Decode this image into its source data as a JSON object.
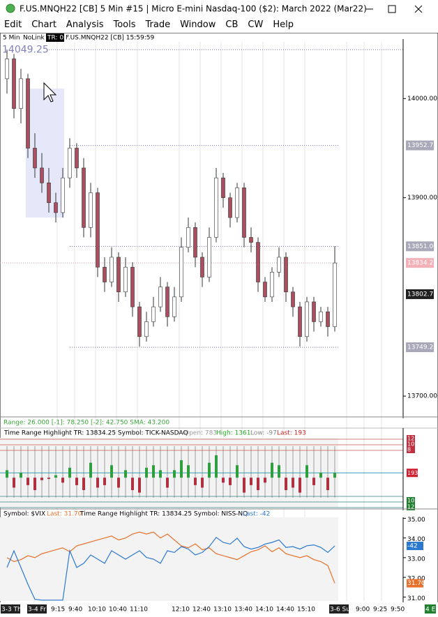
{
  "window": {
    "title": "F.US.MNQH22 [CB]  5 Min   #15 | Micro E-mini Nasdaq-100 ($2): March 2022 (Mar22)",
    "menus": [
      "Edit",
      "Chart",
      "Analysis",
      "Tools",
      "Trade",
      "Window",
      "CB",
      "CW",
      "Help"
    ]
  },
  "toolbar": {
    "interval": "5 Min",
    "link": "NoLink",
    "tr": "TR: 0s",
    "symbol_time": "F.US.MNQH22 [CB] 15:59:59"
  },
  "x_axis": {
    "labels": [
      "3-3 Th",
      "3-4 Fr",
      "9:15",
      "9:40",
      "10:10",
      "10:40",
      "11:10",
      "12:10",
      "12:40",
      "13:10",
      "13:40",
      "14:10",
      "14:40",
      "15:10",
      "3-6 Su",
      "9:00",
      "9:25",
      "9:50",
      "4 E"
    ]
  },
  "chart_data": [
    {
      "type": "candlestick",
      "high_label": "14049.25",
      "ylim": [
        13679,
        14060
      ],
      "yticks": [
        {
          "value": 14000,
          "label": "14000.00"
        },
        {
          "value": 13900,
          "label": "13900.00"
        },
        {
          "value": 13700,
          "label": "13700.00"
        }
      ],
      "levels": [
        14049.25,
        13952.75,
        13851.0,
        13834.25,
        13749.25
      ],
      "markers": [
        {
          "value": 13952.75,
          "label": "13952.75",
          "color": "#a8a8b8"
        },
        {
          "value": 13851.0,
          "label": "13851.00",
          "color": "#a8a8b8"
        },
        {
          "value": 13834.25,
          "label": "13834.25",
          "color": "#f2b0b8"
        },
        {
          "value": 13802.75,
          "label": "13802.75",
          "color": "#202020"
        },
        {
          "value": 13749.25,
          "label": "13749.25",
          "color": "#a8a8b8"
        }
      ],
      "up_color": "#ffffff",
      "down_color": "#a85060",
      "candles": [
        [
          14020,
          14049.25,
          14005,
          14040
        ],
        [
          14040,
          14045,
          13980,
          13990
        ],
        [
          13990,
          14030,
          13975,
          14020
        ],
        [
          14020,
          14025,
          13940,
          13950
        ],
        [
          13950,
          13965,
          13920,
          13930
        ],
        [
          13930,
          13945,
          13905,
          13915
        ],
        [
          13915,
          13930,
          13885,
          13895
        ],
        [
          13895,
          13905,
          13875,
          13885
        ],
        [
          13885,
          13930,
          13880,
          13920
        ],
        [
          13920,
          13960,
          13910,
          13950
        ],
        [
          13950,
          13955,
          13920,
          13930
        ],
        [
          13930,
          13940,
          13860,
          13870
        ],
        [
          13870,
          13915,
          13860,
          13905
        ],
        [
          13905,
          13910,
          13820,
          13830
        ],
        [
          13830,
          13840,
          13805,
          13815
        ],
        [
          13815,
          13850,
          13810,
          13840
        ],
        [
          13840,
          13845,
          13795,
          13805
        ],
        [
          13805,
          13840,
          13800,
          13830
        ],
        [
          13830,
          13835,
          13780,
          13790
        ],
        [
          13790,
          13795,
          13750,
          13760
        ],
        [
          13760,
          13785,
          13755,
          13775
        ],
        [
          13775,
          13800,
          13770,
          13790
        ],
        [
          13790,
          13820,
          13785,
          13810
        ],
        [
          13810,
          13815,
          13770,
          13780
        ],
        [
          13780,
          13810,
          13775,
          13800
        ],
        [
          13800,
          13860,
          13795,
          13850
        ],
        [
          13850,
          13880,
          13845,
          13870
        ],
        [
          13870,
          13875,
          13830,
          13840
        ],
        [
          13840,
          13845,
          13810,
          13820
        ],
        [
          13820,
          13870,
          13815,
          13860
        ],
        [
          13860,
          13930,
          13855,
          13920
        ],
        [
          13920,
          13925,
          13890,
          13900
        ],
        [
          13900,
          13905,
          13870,
          13880
        ],
        [
          13880,
          13915,
          13875,
          13910
        ],
        [
          13910,
          13915,
          13850,
          13860
        ],
        [
          13860,
          13870,
          13845,
          13855
        ],
        [
          13855,
          13860,
          13805,
          13815
        ],
        [
          13815,
          13820,
          13795,
          13800
        ],
        [
          13800,
          13830,
          13795,
          13825
        ],
        [
          13825,
          13850,
          13820,
          13840
        ],
        [
          13840,
          13845,
          13795,
          13805
        ],
        [
          13805,
          13810,
          13780,
          13790
        ],
        [
          13790,
          13795,
          13750,
          13760
        ],
        [
          13760,
          13800,
          13755,
          13795
        ],
        [
          13795,
          13800,
          13765,
          13775
        ],
        [
          13775,
          13790,
          13770,
          13785
        ],
        [
          13785,
          13790,
          13760,
          13770
        ],
        [
          13770,
          13851,
          13765,
          13834.25
        ]
      ]
    },
    {
      "type": "bar",
      "range_text": "Range: 26.000 [-1]: 78.250 [-2]: 42.750 SMA: 43.200",
      "header": "Time Range Highlight  TR: 13834.25  Symbol: TICK-NASDAQ",
      "open": "Open: 783",
      "high": "High: 1361",
      "low": "Low: -97",
      "last": "Last: 193",
      "last_value": {
        "value": 193,
        "label": "193"
      },
      "level_labels": [
        "12",
        "10",
        "8",
        "10",
        "12"
      ],
      "ylim": [
        -1200,
        1600
      ],
      "up_color": "#2e9e3e",
      "down_color": "#b03040",
      "values": [
        300,
        -400,
        200,
        -300,
        -500,
        -100,
        -50,
        100,
        -200,
        400,
        -300,
        -500,
        600,
        -400,
        -300,
        500,
        -400,
        300,
        -500,
        -600,
        400,
        500,
        300,
        -400,
        300,
        700,
        500,
        -300,
        -400,
        600,
        900,
        -200,
        -300,
        500,
        -600,
        -300,
        -500,
        -200,
        600,
        500,
        -500,
        -400,
        -600,
        500,
        -300,
        200,
        -500,
        193
      ]
    },
    {
      "type": "line",
      "header": "Symbol: $VIX",
      "header_tr": "Time Range Highlight  TR: 13834.25  Symbol: NISS-NQ",
      "ylim": [
        30.8,
        35.05
      ],
      "yticks": [
        {
          "value": 35,
          "label": "35.00"
        },
        {
          "value": 34,
          "label": "34.00"
        },
        {
          "value": 33,
          "label": "33.00"
        },
        {
          "value": 32,
          "label": "32.00"
        },
        {
          "value": 31,
          "label": "31.00"
        }
      ],
      "y2lim": [
        -700,
        300
      ],
      "series": [
        {
          "name": "$VIX",
          "color": "#e8702a",
          "last": {
            "value": 31.7,
            "label": "31.70"
          },
          "last_text": "Last: 31.70",
          "values": [
            33.0,
            32.8,
            32.9,
            33.1,
            33.0,
            33.2,
            33.3,
            33.4,
            33.5,
            33.3,
            33.6,
            33.7,
            33.8,
            33.9,
            34.0,
            34.1,
            33.9,
            34.0,
            34.2,
            34.3,
            34.2,
            34.3,
            34.0,
            34.2,
            33.9,
            33.6,
            33.5,
            33.7,
            33.4,
            33.5,
            33.2,
            33.1,
            33.0,
            32.9,
            33.1,
            33.3,
            33.4,
            33.6,
            33.3,
            33.5,
            33.2,
            33.1,
            33.0,
            33.1,
            32.9,
            32.8,
            32.6,
            31.7
          ]
        },
        {
          "name": "NISS-NQ",
          "color": "#2a78d0",
          "axis": "y2",
          "last": {
            "value": -42,
            "label": "-42"
          },
          "last_text": "Last: -42",
          "values": [
            -300,
            -100,
            -300,
            -500,
            -680,
            -690,
            -690,
            -690,
            -690,
            -100,
            -300,
            -250,
            -150,
            -200,
            -250,
            -100,
            -150,
            -200,
            -150,
            -100,
            -180,
            -200,
            -250,
            -100,
            -120,
            -50,
            -80,
            -150,
            -120,
            -50,
            60,
            0,
            -20,
            50,
            -50,
            -80,
            -60,
            -20,
            0,
            30,
            -60,
            -50,
            -80,
            -40,
            -30,
            -60,
            -120,
            -42
          ]
        }
      ]
    }
  ]
}
